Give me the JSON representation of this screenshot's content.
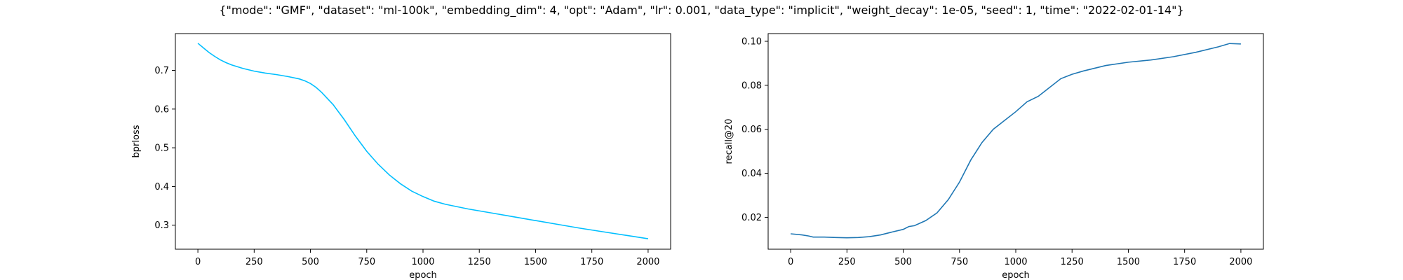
{
  "figure_title": "{\"mode\": \"GMF\", \"dataset\": \"ml-100k\", \"embedding_dim\": 4, \"opt\": \"Adam\", \"lr\": 0.001, \"data_type\": \"implicit\", \"weight_decay\": 1e-05, \"seed\": 1, \"time\": \"2022-02-01-14\"}",
  "chart_data": [
    {
      "type": "line",
      "xlabel": "epoch",
      "ylabel": "bprloss",
      "xlim": [
        -100,
        2100
      ],
      "ylim": [
        0.238,
        0.795
      ],
      "xticks": [
        0,
        250,
        500,
        750,
        1000,
        1250,
        1500,
        1750,
        2000
      ],
      "yticks": [
        0.3,
        0.4,
        0.5,
        0.6,
        0.7
      ],
      "grid": false,
      "series": [
        {
          "color": "#00bfff",
          "points": [
            [
              0,
              0.77
            ],
            [
              25,
              0.758
            ],
            [
              50,
              0.746
            ],
            [
              75,
              0.736
            ],
            [
              100,
              0.727
            ],
            [
              125,
              0.72
            ],
            [
              150,
              0.714
            ],
            [
              200,
              0.705
            ],
            [
              250,
              0.698
            ],
            [
              300,
              0.693
            ],
            [
              350,
              0.689
            ],
            [
              400,
              0.684
            ],
            [
              450,
              0.678
            ],
            [
              475,
              0.673
            ],
            [
              500,
              0.666
            ],
            [
              525,
              0.656
            ],
            [
              550,
              0.643
            ],
            [
              600,
              0.612
            ],
            [
              650,
              0.573
            ],
            [
              700,
              0.53
            ],
            [
              750,
              0.491
            ],
            [
              800,
              0.458
            ],
            [
              850,
              0.43
            ],
            [
              900,
              0.407
            ],
            [
              950,
              0.388
            ],
            [
              1000,
              0.374
            ],
            [
              1050,
              0.362
            ],
            [
              1100,
              0.354
            ],
            [
              1200,
              0.342
            ],
            [
              1300,
              0.332
            ],
            [
              1400,
              0.322
            ],
            [
              1500,
              0.312
            ],
            [
              1600,
              0.302
            ],
            [
              1700,
              0.292
            ],
            [
              1800,
              0.283
            ],
            [
              1900,
              0.274
            ],
            [
              2000,
              0.265
            ]
          ]
        }
      ]
    },
    {
      "type": "line",
      "xlabel": "epoch",
      "ylabel": "recall@20",
      "xlim": [
        -100,
        2100
      ],
      "ylim": [
        0.0055,
        0.1035
      ],
      "xticks": [
        0,
        250,
        500,
        750,
        1000,
        1250,
        1500,
        1750,
        2000
      ],
      "yticks": [
        0.02,
        0.04,
        0.06,
        0.08,
        0.1
      ],
      "grid": false,
      "series": [
        {
          "color": "#1f77b4",
          "points": [
            [
              0,
              0.0125
            ],
            [
              50,
              0.012
            ],
            [
              80,
              0.0115
            ],
            [
              100,
              0.011
            ],
            [
              150,
              0.011
            ],
            [
              200,
              0.0108
            ],
            [
              250,
              0.0107
            ],
            [
              300,
              0.0108
            ],
            [
              350,
              0.0112
            ],
            [
              400,
              0.012
            ],
            [
              450,
              0.0133
            ],
            [
              500,
              0.0145
            ],
            [
              525,
              0.0158
            ],
            [
              550,
              0.0162
            ],
            [
              600,
              0.0185
            ],
            [
              650,
              0.022
            ],
            [
              700,
              0.028
            ],
            [
              750,
              0.036
            ],
            [
              800,
              0.046
            ],
            [
              850,
              0.054
            ],
            [
              900,
              0.06
            ],
            [
              950,
              0.064
            ],
            [
              1000,
              0.068
            ],
            [
              1050,
              0.0725
            ],
            [
              1100,
              0.075
            ],
            [
              1150,
              0.079
            ],
            [
              1200,
              0.083
            ],
            [
              1250,
              0.085
            ],
            [
              1300,
              0.0865
            ],
            [
              1400,
              0.089
            ],
            [
              1500,
              0.0905
            ],
            [
              1600,
              0.0915
            ],
            [
              1700,
              0.093
            ],
            [
              1800,
              0.095
            ],
            [
              1900,
              0.0975
            ],
            [
              1950,
              0.099
            ],
            [
              2000,
              0.0988
            ]
          ]
        }
      ]
    }
  ]
}
